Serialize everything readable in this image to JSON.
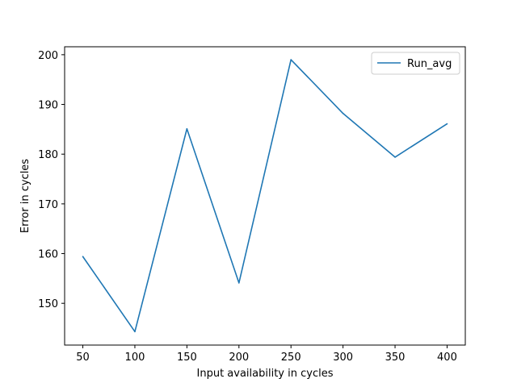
{
  "chart_data": {
    "type": "line",
    "title": "",
    "xlabel": "Input availability in cycles",
    "ylabel": "Error in cycles",
    "x": [
      50,
      100,
      150,
      200,
      250,
      300,
      350,
      400
    ],
    "xticks": [
      50,
      100,
      150,
      200,
      250,
      300,
      350,
      400
    ],
    "yticks": [
      150,
      160,
      170,
      180,
      190,
      200
    ],
    "xlim": [
      32.5,
      417.5
    ],
    "ylim": [
      141.6,
      201.6
    ],
    "grid": false,
    "legend_position": "top-right",
    "series": [
      {
        "name": "Run_avg",
        "color": "#1f77b4",
        "values": [
          159.4,
          144.3,
          185.1,
          154.1,
          199.0,
          188.2,
          179.4,
          186.1
        ]
      }
    ]
  }
}
